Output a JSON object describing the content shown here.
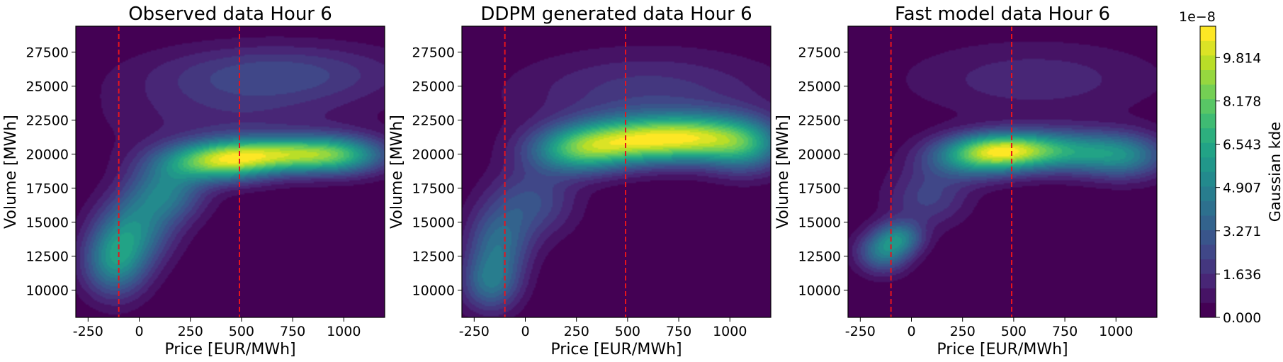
{
  "chart_data": [
    {
      "type": "heatmap",
      "title": "Observed data Hour 6",
      "xlabel": "Price [EUR/MWh]",
      "ylabel": "Volume [MWh]",
      "xlim": [
        -310,
        1200
      ],
      "ylim": [
        8000,
        29400
      ],
      "xticks": [
        -250,
        0,
        250,
        500,
        750,
        1000
      ],
      "yticks": [
        10000,
        12500,
        15000,
        17500,
        20000,
        22500,
        25000,
        27500
      ],
      "vlines": [
        -100,
        490
      ],
      "blobs": [
        {
          "x": -120,
          "y": 12000,
          "sx": 110,
          "sy": 1800,
          "w": 0.65
        },
        {
          "x": -20,
          "y": 14500,
          "sx": 130,
          "sy": 1800,
          "w": 0.55
        },
        {
          "x": 130,
          "y": 17200,
          "sx": 130,
          "sy": 1500,
          "w": 0.55
        },
        {
          "x": 380,
          "y": 19400,
          "sx": 190,
          "sy": 1000,
          "w": 0.95
        },
        {
          "x": 680,
          "y": 20000,
          "sx": 230,
          "sy": 900,
          "w": 0.9
        },
        {
          "x": 980,
          "y": 19900,
          "sx": 170,
          "sy": 1000,
          "w": 0.65
        },
        {
          "x": 700,
          "y": 26000,
          "sx": 420,
          "sy": 1500,
          "w": 0.28
        },
        {
          "x": 450,
          "y": 23000,
          "sx": 450,
          "sy": 2500,
          "w": 0.18
        }
      ]
    },
    {
      "type": "heatmap",
      "title": "DDPM generated data Hour 6",
      "xlabel": "Price [EUR/MWh]",
      "ylabel": "Volume [MWh]",
      "xlim": [
        -310,
        1200
      ],
      "ylim": [
        8000,
        29400
      ],
      "xticks": [
        -250,
        0,
        250,
        500,
        750,
        1000
      ],
      "yticks": [
        10000,
        12500,
        15000,
        17500,
        20000,
        22500,
        25000,
        27500
      ],
      "vlines": [
        -100,
        490
      ],
      "blobs": [
        {
          "x": -170,
          "y": 10500,
          "sx": 100,
          "sy": 1500,
          "w": 0.5
        },
        {
          "x": -130,
          "y": 13500,
          "sx": 110,
          "sy": 1800,
          "w": 0.45
        },
        {
          "x": 30,
          "y": 16500,
          "sx": 150,
          "sy": 1800,
          "w": 0.35
        },
        {
          "x": 250,
          "y": 20200,
          "sx": 170,
          "sy": 1200,
          "w": 0.7
        },
        {
          "x": 520,
          "y": 21000,
          "sx": 220,
          "sy": 1200,
          "w": 0.95
        },
        {
          "x": 850,
          "y": 21200,
          "sx": 200,
          "sy": 1200,
          "w": 0.85
        },
        {
          "x": 1080,
          "y": 20500,
          "sx": 140,
          "sy": 1400,
          "w": 0.55
        },
        {
          "x": 600,
          "y": 24500,
          "sx": 450,
          "sy": 2200,
          "w": 0.25
        }
      ]
    },
    {
      "type": "heatmap",
      "title": "Fast model data Hour 6",
      "xlabel": "Price [EUR/MWh]",
      "ylabel": "Volume [MWh]",
      "xlim": [
        -310,
        1200
      ],
      "ylim": [
        8000,
        29400
      ],
      "xticks": [
        -250,
        0,
        250,
        500,
        750,
        1000
      ],
      "yticks": [
        10000,
        12500,
        15000,
        17500,
        20000,
        22500,
        25000,
        27500
      ],
      "vlines": [
        -100,
        490
      ],
      "blobs": [
        {
          "x": -140,
          "y": 12800,
          "sx": 90,
          "sy": 1100,
          "w": 0.65
        },
        {
          "x": -50,
          "y": 13900,
          "sx": 80,
          "sy": 900,
          "w": 0.55
        },
        {
          "x": 80,
          "y": 16800,
          "sx": 140,
          "sy": 1500,
          "w": 0.35
        },
        {
          "x": 300,
          "y": 19700,
          "sx": 170,
          "sy": 1100,
          "w": 0.7
        },
        {
          "x": 460,
          "y": 20300,
          "sx": 170,
          "sy": 900,
          "w": 0.95
        },
        {
          "x": 750,
          "y": 20200,
          "sx": 220,
          "sy": 1100,
          "w": 0.75
        },
        {
          "x": 1050,
          "y": 19800,
          "sx": 150,
          "sy": 1200,
          "w": 0.55
        },
        {
          "x": 600,
          "y": 25500,
          "sx": 450,
          "sy": 2000,
          "w": 0.22
        }
      ]
    }
  ],
  "colorbar": {
    "label": "Gaussian kde",
    "exponent": "1e−8",
    "min": 0.0,
    "max": 11.0,
    "levels": 20,
    "ticks": [
      "0.000",
      "1.636",
      "3.271",
      "4.907",
      "6.543",
      "8.178",
      "9.814"
    ]
  },
  "colors": {
    "vline": "#e8141c",
    "viridis": [
      "#440154",
      "#482475",
      "#414487",
      "#355f8d",
      "#2a788e",
      "#21918c",
      "#22a884",
      "#44bf70",
      "#7ad151",
      "#bddf26",
      "#fde725"
    ]
  }
}
